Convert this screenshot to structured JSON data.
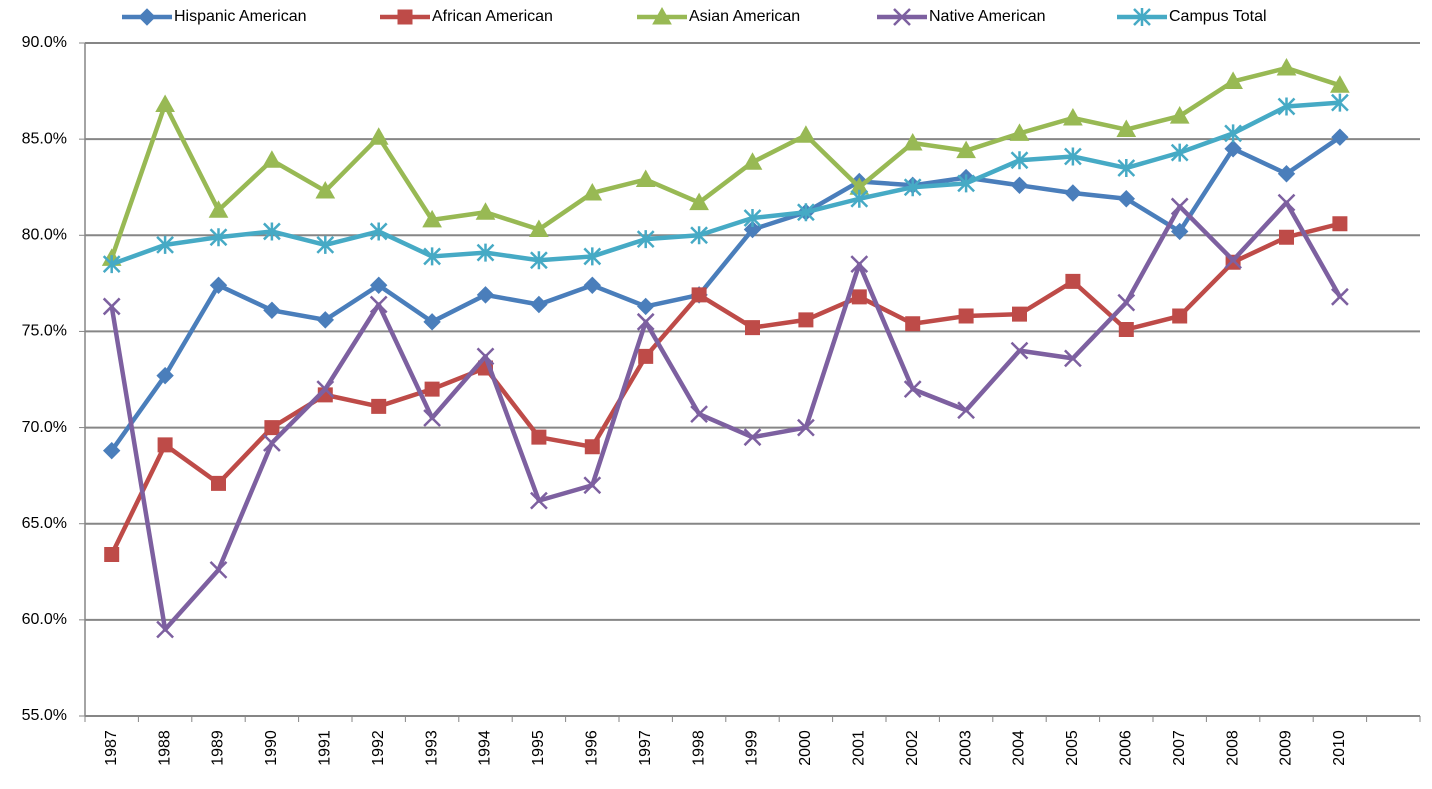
{
  "chart_data": {
    "type": "line",
    "categories": [
      "1987",
      "1988",
      "1989",
      "1990",
      "1991",
      "1992",
      "1993",
      "1994",
      "1995",
      "1996",
      "1997",
      "1998",
      "1999",
      "2000",
      "2001",
      "2002",
      "2003",
      "2004",
      "2005",
      "2006",
      "2007",
      "2008",
      "2009",
      "2010"
    ],
    "series": [
      {
        "name": "Hispanic American",
        "color": "#4a7ebb",
        "marker": "diamond",
        "values": [
          68.8,
          72.7,
          77.4,
          76.1,
          75.6,
          77.4,
          75.5,
          76.9,
          76.4,
          77.4,
          76.3,
          76.9,
          80.3,
          81.2,
          82.8,
          82.6,
          83.0,
          82.6,
          82.2,
          81.9,
          80.2,
          84.5,
          83.2,
          85.1
        ]
      },
      {
        "name": "African American",
        "color": "#be4b48",
        "marker": "square",
        "values": [
          63.4,
          69.1,
          67.1,
          70.0,
          71.7,
          71.1,
          72.0,
          73.1,
          69.5,
          69.0,
          73.7,
          76.9,
          75.2,
          75.6,
          76.8,
          75.4,
          75.8,
          75.9,
          77.6,
          75.1,
          75.8,
          78.6,
          79.9,
          80.6
        ]
      },
      {
        "name": "Asian American",
        "color": "#98b954",
        "marker": "triangle",
        "values": [
          78.8,
          86.8,
          81.3,
          83.9,
          82.3,
          85.1,
          80.8,
          81.2,
          80.3,
          82.2,
          82.9,
          81.7,
          83.8,
          85.2,
          82.5,
          84.8,
          84.4,
          85.3,
          86.1,
          85.5,
          86.2,
          88.0,
          88.7,
          87.8
        ]
      },
      {
        "name": "Native American",
        "color": "#7d60a0",
        "marker": "x",
        "values": [
          76.3,
          59.5,
          62.6,
          69.2,
          72.0,
          76.4,
          70.5,
          73.7,
          66.2,
          67.0,
          75.5,
          70.7,
          69.5,
          70.0,
          78.5,
          72.0,
          70.9,
          74.0,
          73.6,
          76.5,
          81.5,
          78.7,
          81.7,
          76.8
        ]
      },
      {
        "name": "Campus Total",
        "color": "#46aac5",
        "marker": "asterisk",
        "values": [
          78.5,
          79.5,
          79.9,
          80.2,
          79.5,
          80.2,
          78.9,
          79.1,
          78.7,
          78.9,
          79.8,
          80.0,
          80.9,
          81.2,
          81.9,
          82.5,
          82.7,
          83.9,
          84.1,
          83.5,
          84.3,
          85.3,
          86.7,
          86.9
        ]
      }
    ],
    "ylim": [
      55,
      90
    ],
    "yticks": [
      {
        "value": 55,
        "label": "55.0%"
      },
      {
        "value": 60,
        "label": "60.0%"
      },
      {
        "value": 65,
        "label": "65.0%"
      },
      {
        "value": 70,
        "label": "70.0%"
      },
      {
        "value": 75,
        "label": "75.0%"
      },
      {
        "value": 80,
        "label": "80.0%"
      },
      {
        "value": 85,
        "label": "85.0%"
      },
      {
        "value": 90,
        "label": "90.0%"
      }
    ],
    "grid": true,
    "legend": "top"
  }
}
